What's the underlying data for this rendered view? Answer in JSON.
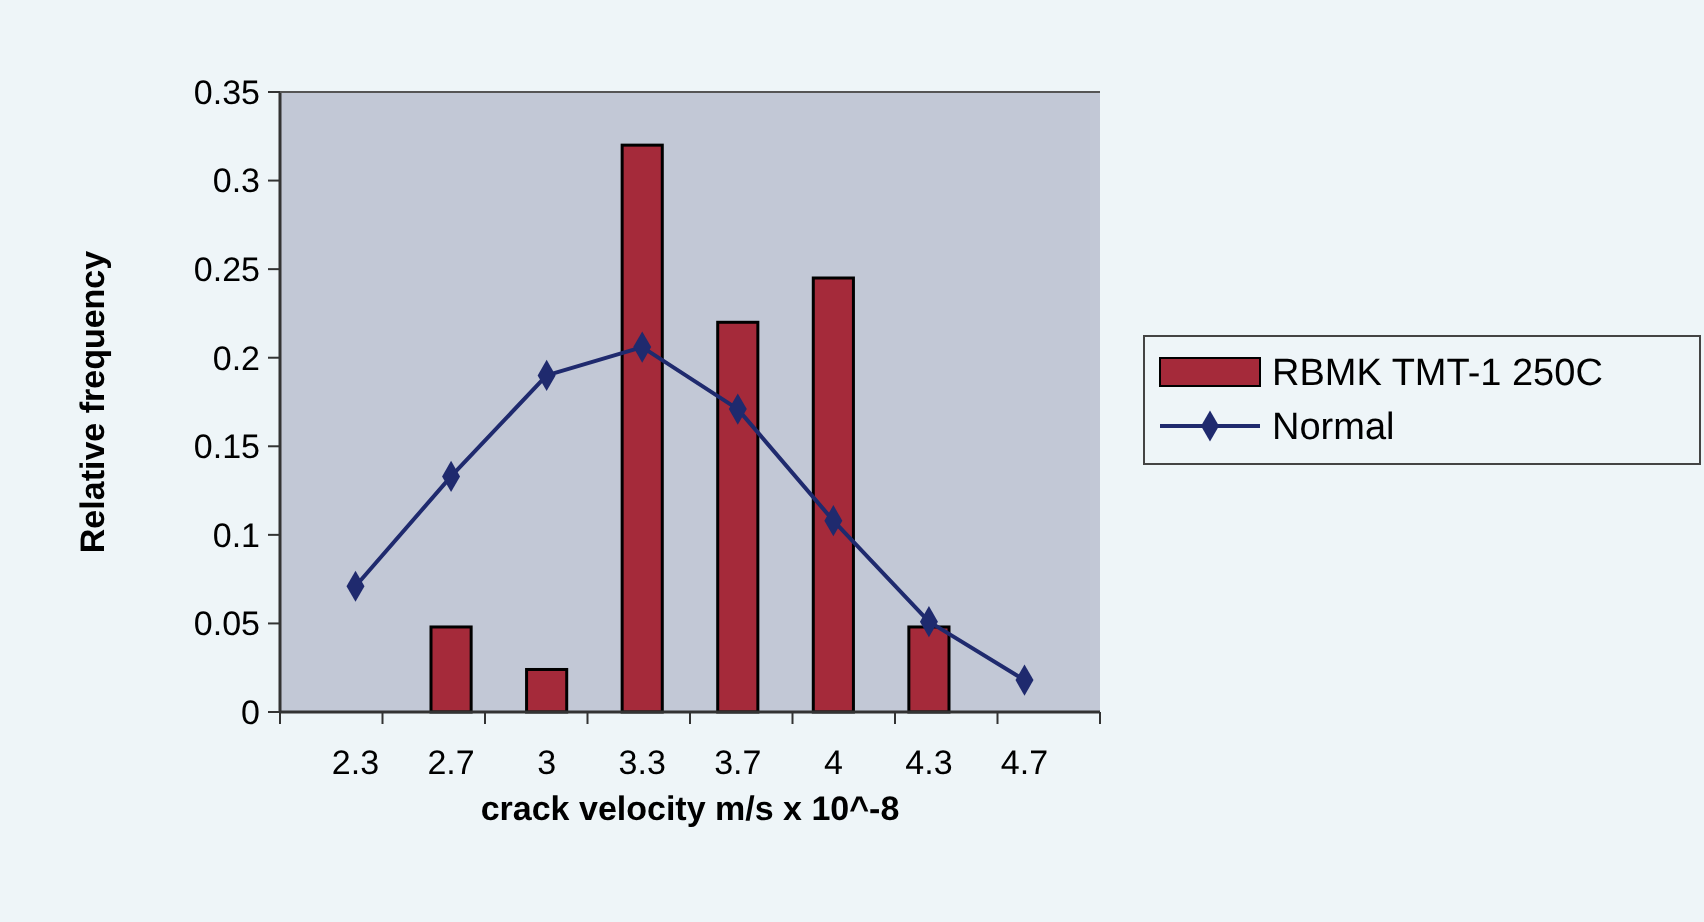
{
  "chart_data": {
    "type": "bar",
    "xlabel": "crack velocity m/s x 10^-8",
    "ylabel": "Relative frequency",
    "categories": [
      "2.3",
      "2.7",
      "3",
      "3.3",
      "3.7",
      "4",
      "4.3",
      "4.7"
    ],
    "series": [
      {
        "name": "RBMK TMT-1 250C",
        "color": "#a52a3a",
        "values": [
          0,
          0.048,
          0.024,
          0.32,
          0.22,
          0.245,
          0.048,
          0
        ]
      },
      {
        "name": "Normal",
        "type": "line",
        "color": "#1f2a6e",
        "marker": "diamond",
        "values": [
          0.071,
          0.133,
          0.19,
          0.206,
          0.171,
          0.108,
          0.051,
          0.018
        ]
      }
    ],
    "ylim": [
      0,
      0.35
    ],
    "yticks": [
      0,
      0.05,
      0.1,
      0.15,
      0.2,
      0.25,
      0.3,
      0.35
    ],
    "grid": false,
    "legend": "right"
  }
}
